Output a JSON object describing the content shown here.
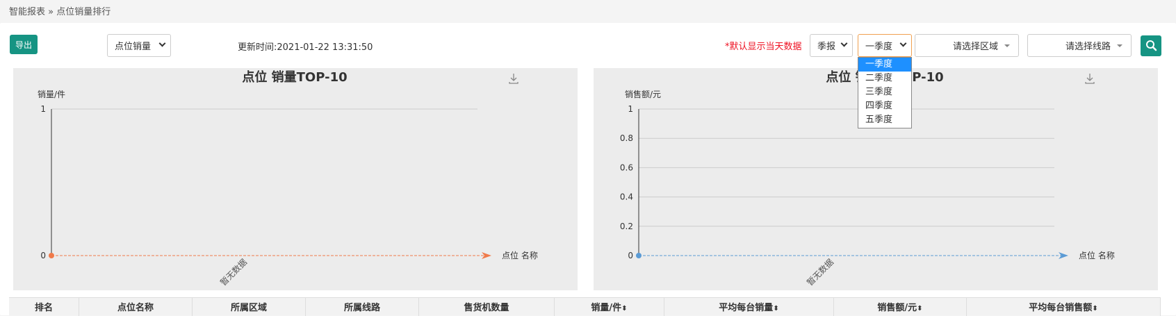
{
  "breadcrumb": "智能报表 » 点位销量排行",
  "toolbar": {
    "export_label": "导出",
    "metric_select": "点位销量",
    "update_time": "更新时间:2021-01-22 13:31:50",
    "hint": "*默认显示当天数据",
    "period_type": "季报",
    "quarter": "一季度",
    "region_placeholder": "请选择区域",
    "route_placeholder": "请选择线路",
    "search_icon": "search-icon",
    "accent_color": "#169483"
  },
  "quarter_dropdown": {
    "options": [
      "一季度",
      "二季度",
      "三季度",
      "四季度",
      "五季度"
    ],
    "selected_index": 0
  },
  "chart_data": [
    {
      "type": "line",
      "title": "点位 销量TOP-10",
      "ylabel": "销量/件",
      "xlabel": "点位 名称",
      "y_ticks": [
        "0",
        "1"
      ],
      "ylim": [
        0,
        1
      ],
      "categories": [
        "暂无数据"
      ],
      "series": [
        {
          "values": [
            0
          ],
          "color": "#f07a4a"
        }
      ],
      "download_icon": "download-icon"
    },
    {
      "type": "line",
      "title": "点位 销售额TOP-10",
      "ylabel": "销售额/元",
      "xlabel": "点位 名称",
      "y_ticks": [
        "0",
        "0.2",
        "0.4",
        "0.6",
        "0.8",
        "1"
      ],
      "ylim": [
        0,
        1
      ],
      "categories": [
        "暂无数据"
      ],
      "series": [
        {
          "values": [
            0
          ],
          "color": "#5b9bd5"
        }
      ],
      "download_icon": "download-icon"
    }
  ],
  "table": {
    "headers": [
      "排名",
      "点位名称",
      "所属区域",
      "所属线路",
      "售货机数量",
      "销量/件",
      "平均每台销量",
      "销售额/元",
      "平均每台销售额"
    ],
    "sortable": [
      false,
      false,
      false,
      false,
      false,
      true,
      true,
      true,
      true
    ]
  }
}
